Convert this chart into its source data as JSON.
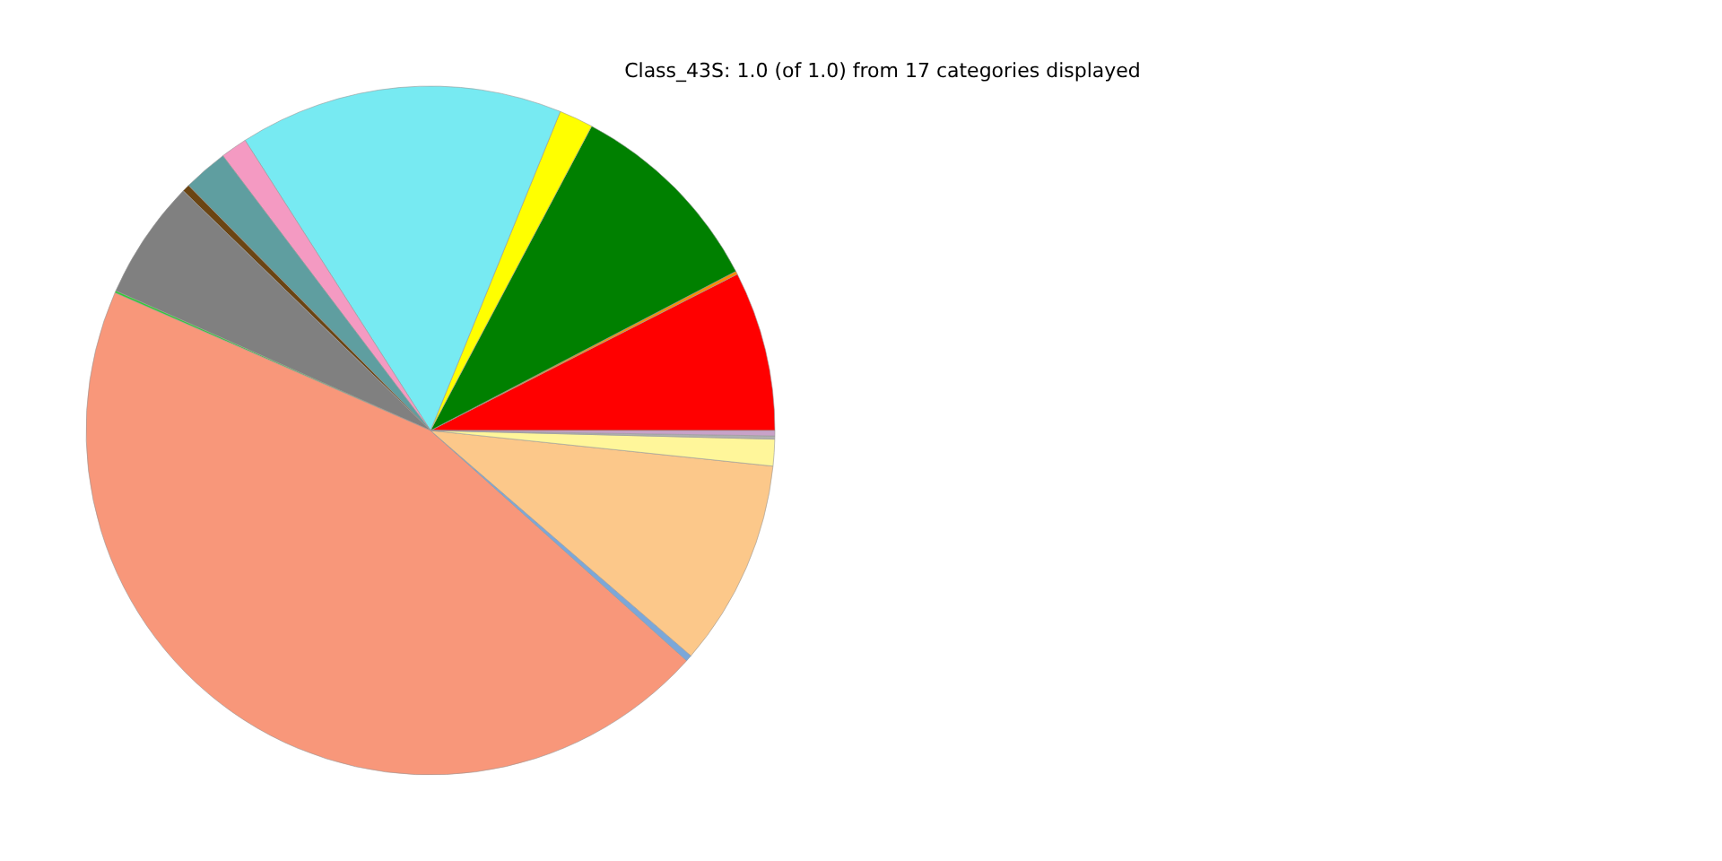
{
  "chart_data": {
    "type": "pie",
    "title": "Class_43S: 1.0 (of 1.0) from 17 categories displayed",
    "categories": [
      null,
      null,
      null,
      null,
      null,
      null,
      null,
      null,
      null,
      null,
      null,
      null,
      null,
      null,
      null,
      null
    ],
    "values": [
      7.5,
      0.15,
      9.6,
      1.6,
      15.2,
      1.25,
      2.1,
      0.35,
      5.6,
      0.1,
      44.9,
      0.3,
      9.7,
      1.25,
      0.15,
      0.25
    ],
    "colors": [
      "#ff0000",
      "#ff8c00",
      "#008000",
      "#ffff00",
      "#77eaf2",
      "#f49ac2",
      "#5f9ea0",
      "#6b4513",
      "#808080",
      "#32cd32",
      "#f8977a",
      "#7ba7d9",
      "#fcc88a",
      "#fff69a",
      "#b0b0b0",
      "#c8a2c8"
    ]
  }
}
